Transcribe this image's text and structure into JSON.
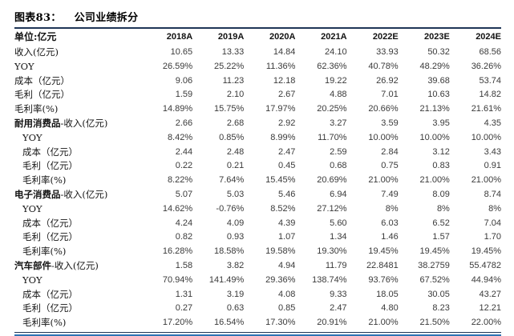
{
  "title": {
    "figure_label": "图表83：",
    "figure_text": "公司业绩拆分"
  },
  "colors": {
    "rule_dark": "#1f3557",
    "rule_blue": "#2e74b5",
    "header_text": "#121212",
    "value_text": "#3a3a3a"
  },
  "table": {
    "unit_header": "单位:亿元",
    "columns": [
      "2018A",
      "2019A",
      "2020A",
      "2021A",
      "2022E",
      "2023E",
      "2024E"
    ],
    "rows": [
      {
        "label": "收入(亿元)",
        "indent": 0,
        "bold_prefix": "",
        "values": [
          "10.65",
          "13.33",
          "14.84",
          "24.10",
          "33.93",
          "50.32",
          "68.56"
        ]
      },
      {
        "label": "YOY",
        "indent": 0,
        "bold_prefix": "",
        "values": [
          "26.59%",
          "25.22%",
          "11.36%",
          "62.36%",
          "40.78%",
          "48.29%",
          "36.26%"
        ]
      },
      {
        "label": "成本（亿元）",
        "indent": 0,
        "bold_prefix": "",
        "values": [
          "9.06",
          "11.23",
          "12.18",
          "19.22",
          "26.92",
          "39.68",
          "53.74"
        ]
      },
      {
        "label": "毛利（亿元）",
        "indent": 0,
        "bold_prefix": "",
        "values": [
          "1.59",
          "2.10",
          "2.67",
          "4.88",
          "7.01",
          "10.63",
          "14.82"
        ]
      },
      {
        "label": "毛利率(%)",
        "indent": 0,
        "bold_prefix": "",
        "values": [
          "14.89%",
          "15.75%",
          "17.97%",
          "20.25%",
          "20.66%",
          "21.13%",
          "21.61%"
        ]
      },
      {
        "label": "-收入(亿元)",
        "indent": 0,
        "bold_prefix": "耐用消费品",
        "values": [
          "2.66",
          "2.68",
          "2.92",
          "3.27",
          "3.59",
          "3.95",
          "4.35"
        ]
      },
      {
        "label": "YOY",
        "indent": 1,
        "bold_prefix": "",
        "values": [
          "8.42%",
          "0.85%",
          "8.99%",
          "11.70%",
          "10.00%",
          "10.00%",
          "10.00%"
        ]
      },
      {
        "label": "成本（亿元）",
        "indent": 1,
        "bold_prefix": "",
        "values": [
          "2.44",
          "2.48",
          "2.47",
          "2.59",
          "2.84",
          "3.12",
          "3.43"
        ]
      },
      {
        "label": "毛利（亿元）",
        "indent": 1,
        "bold_prefix": "",
        "values": [
          "0.22",
          "0.21",
          "0.45",
          "0.68",
          "0.75",
          "0.83",
          "0.91"
        ]
      },
      {
        "label": "毛利率(%)",
        "indent": 1,
        "bold_prefix": "",
        "values": [
          "8.22%",
          "7.64%",
          "15.45%",
          "20.69%",
          "21.00%",
          "21.00%",
          "21.00%"
        ]
      },
      {
        "label": "-收入(亿元)",
        "indent": 0,
        "bold_prefix": "电子消费品",
        "values": [
          "5.07",
          "5.03",
          "5.46",
          "6.94",
          "7.49",
          "8.09",
          "8.74"
        ]
      },
      {
        "label": "YOY",
        "indent": 1,
        "bold_prefix": "",
        "values": [
          "14.62%",
          "-0.76%",
          "8.52%",
          "27.12%",
          "8%",
          "8%",
          "8%"
        ]
      },
      {
        "label": "成本（亿元）",
        "indent": 1,
        "bold_prefix": "",
        "values": [
          "4.24",
          "4.09",
          "4.39",
          "5.60",
          "6.03",
          "6.52",
          "7.04"
        ]
      },
      {
        "label": "毛利（亿元）",
        "indent": 1,
        "bold_prefix": "",
        "values": [
          "0.82",
          "0.93",
          "1.07",
          "1.34",
          "1.46",
          "1.57",
          "1.70"
        ]
      },
      {
        "label": "毛利率(%)",
        "indent": 1,
        "bold_prefix": "",
        "values": [
          "16.28%",
          "18.58%",
          "19.58%",
          "19.30%",
          "19.45%",
          "19.45%",
          "19.45%"
        ]
      },
      {
        "label": "-收入(亿元)",
        "indent": 0,
        "bold_prefix": "汽车部件",
        "values": [
          "1.58",
          "3.82",
          "4.94",
          "11.79",
          "22.8481",
          "38.2759",
          "55.4782"
        ]
      },
      {
        "label": "YOY",
        "indent": 1,
        "bold_prefix": "",
        "values": [
          "70.94%",
          "141.49%",
          "29.36%",
          "138.74%",
          "93.76%",
          "67.52%",
          "44.94%"
        ]
      },
      {
        "label": "成本（亿元）",
        "indent": 1,
        "bold_prefix": "",
        "values": [
          "1.31",
          "3.19",
          "4.08",
          "9.33",
          "18.05",
          "30.05",
          "43.27"
        ]
      },
      {
        "label": "毛利（亿元）",
        "indent": 1,
        "bold_prefix": "",
        "values": [
          "0.27",
          "0.63",
          "0.85",
          "2.47",
          "4.80",
          "8.23",
          "12.21"
        ]
      },
      {
        "label": "毛利率(%)",
        "indent": 1,
        "bold_prefix": "",
        "values": [
          "17.20%",
          "16.54%",
          "17.30%",
          "20.91%",
          "21.00%",
          "21.50%",
          "22.00%"
        ]
      }
    ]
  }
}
